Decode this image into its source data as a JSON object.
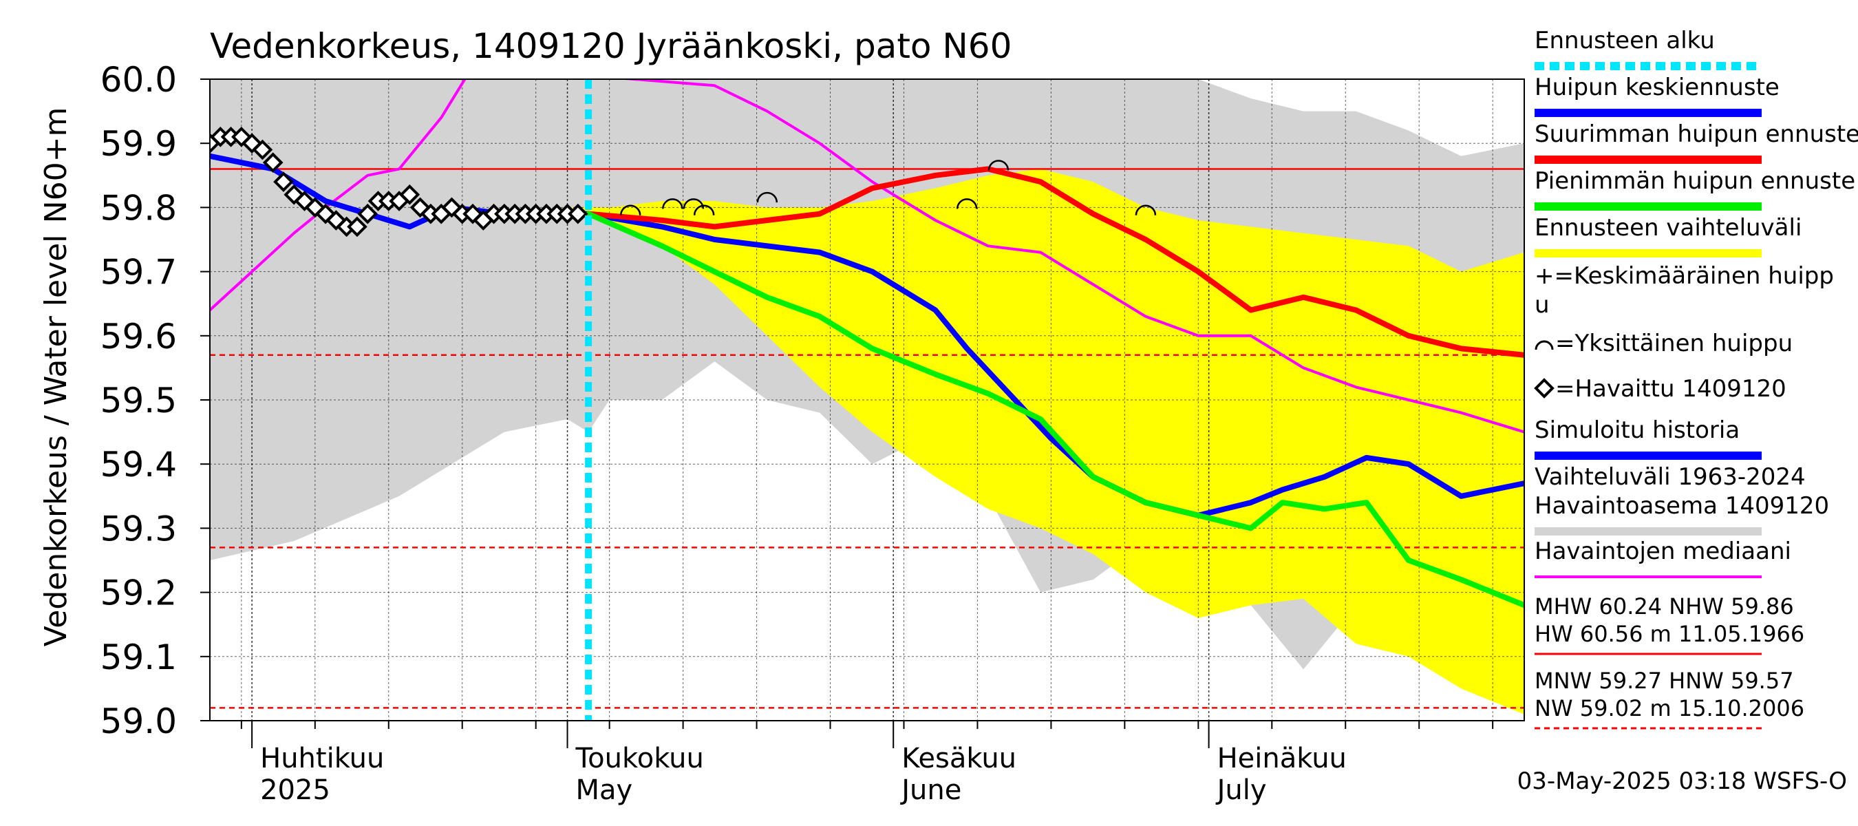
{
  "chart_data": {
    "type": "line",
    "title": "Vedenkorkeus, 1409120 Jyräänkoski, pato N60",
    "ylabel": "Vedenkorkeus / Water level",
    "yunit": "N60+m",
    "ylim": [
      59.0,
      60.0
    ],
    "yticks": [
      "60.0",
      "59.9",
      "59.8",
      "59.7",
      "59.6",
      "59.5",
      "59.4",
      "59.3",
      "59.2",
      "59.1",
      "59.0"
    ],
    "xlim": [
      "2025-03-28",
      "2025-07-31"
    ],
    "month_ticks": [
      {
        "date": "2025-04-01",
        "fi": "Huhtikuu",
        "en": "2025"
      },
      {
        "date": "2025-05-01",
        "fi": "Toukokuu",
        "en": "May"
      },
      {
        "date": "2025-06-01",
        "fi": "Kesäkuu",
        "en": "June"
      },
      {
        "date": "2025-07-01",
        "fi": "Heinäkuu",
        "en": "July"
      }
    ],
    "grid": true,
    "legend_position": "right",
    "forecast_start": "2025-05-03",
    "reference_lines": [
      {
        "name": "NHW",
        "value": 59.86,
        "style": "solid",
        "color": "#ff0000"
      },
      {
        "name": "HNW",
        "value": 59.57,
        "style": "dashed",
        "color": "#ff0000"
      },
      {
        "name": "MNW",
        "value": 59.27,
        "style": "dashed",
        "color": "#ff0000"
      },
      {
        "name": "NW",
        "value": 59.02,
        "style": "dashed",
        "color": "#ff0000"
      }
    ],
    "history_band": {
      "name": "Vaihteluväli 1963-2024 Havaintoasema 1409120",
      "color": "#d3d3d3",
      "x": [
        "2025-03-28",
        "2025-04-05",
        "2025-04-15",
        "2025-04-25",
        "2025-05-01",
        "2025-05-03",
        "2025-05-05",
        "2025-05-10",
        "2025-05-15",
        "2025-05-20",
        "2025-05-25",
        "2025-05-30",
        "2025-06-05",
        "2025-06-10",
        "2025-06-15",
        "2025-06-20",
        "2025-06-25",
        "2025-06-30",
        "2025-07-05",
        "2025-07-10",
        "2025-07-15",
        "2025-07-20",
        "2025-07-25",
        "2025-07-31"
      ],
      "upper": [
        60.0,
        60.0,
        60.0,
        60.0,
        60.0,
        60.0,
        60.0,
        60.0,
        60.0,
        60.0,
        60.0,
        60.0,
        60.0,
        60.0,
        60.0,
        60.0,
        60.0,
        60.0,
        59.97,
        59.95,
        59.95,
        59.92,
        59.88,
        59.9
      ],
      "lower": [
        59.25,
        59.28,
        59.35,
        59.45,
        59.47,
        59.45,
        59.5,
        59.5,
        59.56,
        59.5,
        59.48,
        59.4,
        59.45,
        59.35,
        59.2,
        59.22,
        59.28,
        59.28,
        59.18,
        59.08,
        59.18,
        59.1,
        59.08,
        59.1
      ]
    },
    "forecast_band": {
      "name": "Ennusteen vaihteluväli",
      "color": "#ffff00",
      "x": [
        "2025-05-01",
        "2025-05-05",
        "2025-05-10",
        "2025-05-15",
        "2025-05-20",
        "2025-05-25",
        "2025-05-30",
        "2025-06-05",
        "2025-06-10",
        "2025-06-15",
        "2025-06-20",
        "2025-06-25",
        "2025-06-30",
        "2025-07-05",
        "2025-07-10",
        "2025-07-15",
        "2025-07-20",
        "2025-07-25",
        "2025-07-31"
      ],
      "upper": [
        59.8,
        59.8,
        59.81,
        59.81,
        59.8,
        59.8,
        59.81,
        59.83,
        59.85,
        59.86,
        59.84,
        59.8,
        59.78,
        59.77,
        59.76,
        59.75,
        59.74,
        59.7,
        59.73
      ],
      "lower": [
        59.79,
        59.78,
        59.74,
        59.68,
        59.6,
        59.52,
        59.45,
        59.38,
        59.33,
        59.3,
        59.26,
        59.2,
        59.16,
        59.18,
        59.19,
        59.12,
        59.1,
        59.05,
        59.01
      ]
    },
    "series": [
      {
        "name": "Havaintojen mediaani",
        "color": "#ff00ff",
        "x": [
          "2025-03-28",
          "2025-04-01",
          "2025-04-05",
          "2025-04-08",
          "2025-04-12",
          "2025-04-15",
          "2025-04-19",
          "2025-04-22",
          "2025-05-15",
          "2025-05-20",
          "2025-05-25",
          "2025-05-30",
          "2025-06-05",
          "2025-06-10",
          "2025-06-15",
          "2025-06-20",
          "2025-06-25",
          "2025-06-30",
          "2025-07-05",
          "2025-07-10",
          "2025-07-15",
          "2025-07-20",
          "2025-07-25",
          "2025-07-31"
        ],
        "y": [
          59.64,
          59.7,
          59.76,
          59.8,
          59.85,
          59.86,
          59.94,
          60.02,
          59.99,
          59.95,
          59.9,
          59.84,
          59.78,
          59.74,
          59.73,
          59.68,
          59.63,
          59.6,
          59.6,
          59.55,
          59.52,
          59.5,
          59.48,
          59.45
        ]
      },
      {
        "name": "Simuloitu historia",
        "color": "#0000ff",
        "x": [
          "2025-03-28",
          "2025-04-03",
          "2025-04-08",
          "2025-04-12",
          "2025-04-16",
          "2025-04-20",
          "2025-04-25",
          "2025-04-30",
          "2025-05-03"
        ],
        "y": [
          59.88,
          59.86,
          59.81,
          59.79,
          59.77,
          59.8,
          59.79,
          59.79,
          59.79
        ]
      },
      {
        "name": "Huipun keskiennuste",
        "color": "#0000ff",
        "x": [
          "2025-05-03",
          "2025-05-10",
          "2025-05-15",
          "2025-05-20",
          "2025-05-25",
          "2025-05-30",
          "2025-06-05",
          "2025-06-08",
          "2025-06-12",
          "2025-06-16",
          "2025-06-20",
          "2025-06-25",
          "2025-06-30",
          "2025-07-05",
          "2025-07-08",
          "2025-07-12",
          "2025-07-16",
          "2025-07-20",
          "2025-07-25",
          "2025-07-31"
        ],
        "y": [
          59.79,
          59.77,
          59.75,
          59.74,
          59.73,
          59.7,
          59.64,
          59.58,
          59.51,
          59.44,
          59.38,
          59.34,
          59.32,
          59.34,
          59.36,
          59.38,
          59.41,
          59.4,
          59.35,
          59.37
        ]
      },
      {
        "name": "Suurimman huipun ennuste",
        "color": "#ff0000",
        "x": [
          "2025-05-03",
          "2025-05-10",
          "2025-05-15",
          "2025-05-20",
          "2025-05-25",
          "2025-05-30",
          "2025-06-05",
          "2025-06-10",
          "2025-06-15",
          "2025-06-20",
          "2025-06-25",
          "2025-06-30",
          "2025-07-05",
          "2025-07-10",
          "2025-07-15",
          "2025-07-20",
          "2025-07-25",
          "2025-07-31"
        ],
        "y": [
          59.79,
          59.78,
          59.77,
          59.78,
          59.79,
          59.83,
          59.85,
          59.86,
          59.84,
          59.79,
          59.75,
          59.7,
          59.64,
          59.66,
          59.64,
          59.6,
          59.58,
          59.57
        ]
      },
      {
        "name": "Pienimmän huipun ennuste",
        "color": "#00ee00",
        "x": [
          "2025-05-03",
          "2025-05-10",
          "2025-05-15",
          "2025-05-20",
          "2025-05-25",
          "2025-05-30",
          "2025-06-05",
          "2025-06-10",
          "2025-06-15",
          "2025-06-20",
          "2025-06-25",
          "2025-06-30",
          "2025-07-05",
          "2025-07-08",
          "2025-07-12",
          "2025-07-16",
          "2025-07-20",
          "2025-07-25",
          "2025-07-31"
        ],
        "y": [
          59.79,
          59.74,
          59.7,
          59.66,
          59.63,
          59.58,
          59.54,
          59.51,
          59.47,
          59.38,
          59.34,
          59.32,
          59.3,
          59.34,
          59.33,
          59.34,
          59.25,
          59.22,
          59.18
        ]
      }
    ],
    "observed": {
      "name": "Havaittu 1409120",
      "x": [
        "2025-03-28",
        "2025-03-29",
        "2025-03-30",
        "2025-03-31",
        "2025-04-01",
        "2025-04-02",
        "2025-04-03",
        "2025-04-04",
        "2025-04-05",
        "2025-04-06",
        "2025-04-07",
        "2025-04-08",
        "2025-04-09",
        "2025-04-10",
        "2025-04-11",
        "2025-04-12",
        "2025-04-13",
        "2025-04-14",
        "2025-04-15",
        "2025-04-16",
        "2025-04-17",
        "2025-04-18",
        "2025-04-19",
        "2025-04-20",
        "2025-04-21",
        "2025-04-22",
        "2025-04-23",
        "2025-04-24",
        "2025-04-25",
        "2025-04-26",
        "2025-04-27",
        "2025-04-28",
        "2025-04-29",
        "2025-04-30",
        "2025-05-01",
        "2025-05-02"
      ],
      "y": [
        59.9,
        59.91,
        59.91,
        59.91,
        59.9,
        59.89,
        59.87,
        59.84,
        59.82,
        59.81,
        59.8,
        59.79,
        59.78,
        59.77,
        59.77,
        59.79,
        59.81,
        59.81,
        59.81,
        59.82,
        59.8,
        59.79,
        59.79,
        59.8,
        59.79,
        59.79,
        59.78,
        59.79,
        59.79,
        59.79,
        59.79,
        59.79,
        59.79,
        59.79,
        59.79,
        59.79
      ]
    },
    "single_peaks": {
      "name": "Yksittäinen huippu",
      "x": [
        "2025-05-07",
        "2025-05-11",
        "2025-05-13",
        "2025-05-14",
        "2025-05-20",
        "2025-06-08",
        "2025-06-11",
        "2025-06-25"
      ],
      "y": [
        59.79,
        59.8,
        59.8,
        59.79,
        59.81,
        59.8,
        59.86,
        59.79
      ]
    },
    "legend": [
      {
        "label": "Ennusteen alku",
        "color": "#00e5ff",
        "style": "dotted"
      },
      {
        "label": "Huipun keskiennuste",
        "color": "#0000ff",
        "style": "line"
      },
      {
        "label": "Suurimman huipun ennuste",
        "color": "#ff0000",
        "style": "line"
      },
      {
        "label": "Pienimmän huipun ennuste",
        "color": "#00ee00",
        "style": "line"
      },
      {
        "label": "Ennusteen vaihteluväli",
        "color": "#ffff00",
        "style": "line"
      },
      {
        "label": "+=Keskimääräinen huipp",
        "label2": "u",
        "style": "text"
      },
      {
        "label": "=Yksittäinen huippu",
        "style": "arc"
      },
      {
        "label": "=Havaittu 1409120",
        "style": "diamond"
      },
      {
        "label": "Simuloitu historia",
        "color": "#0000ff",
        "style": "line"
      },
      {
        "label": "Vaihteluväli 1963-2024",
        "label2": " Havaintoasema 1409120",
        "color": "#d3d3d3",
        "style": "line"
      },
      {
        "label": "Havaintojen mediaani",
        "color": "#ff00ff",
        "style": "thin"
      }
    ],
    "stats": [
      {
        "text": "MHW  60.24 NHW  59.86",
        "text2": "HW  60.56 m 11.05.1966",
        "line": "solid"
      },
      {
        "text": "MNW  59.27 HNW  59.57",
        "text2": "NW  59.02 m 15.10.2006",
        "line": "dashed"
      }
    ],
    "footer": "03-May-2025 03:18 WSFS-O"
  }
}
